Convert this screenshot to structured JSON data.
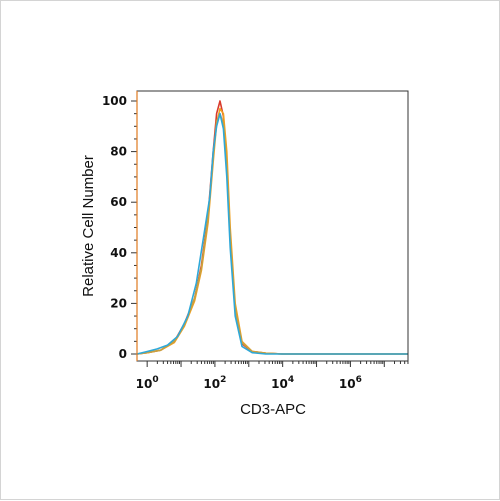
{
  "chart_data": {
    "type": "line",
    "title": "",
    "xlabel": "CD3-APC",
    "ylabel": "Relative Cell Number",
    "x_scale": "log",
    "x_range": [
      -0.3,
      7.7
    ],
    "y_range": [
      0,
      100
    ],
    "x_ticks": [
      {
        "value": 0,
        "base": "10",
        "exp": "0"
      },
      {
        "value": 2,
        "base": "10",
        "exp": "2"
      },
      {
        "value": 4,
        "base": "10",
        "exp": "4"
      },
      {
        "value": 6,
        "base": "10",
        "exp": "6"
      }
    ],
    "y_ticks": [
      "0",
      "20",
      "40",
      "60",
      "80",
      "100"
    ],
    "grid": false,
    "legend": "none",
    "series": [
      {
        "color": "#d93a2b",
        "x": [
          -0.3,
          0.0,
          0.4,
          0.8,
          1.1,
          1.4,
          1.6,
          1.8,
          1.95,
          2.05,
          2.15,
          2.25,
          2.35,
          2.45,
          2.6,
          2.8,
          3.1,
          3.5,
          4.0,
          5.0,
          6.0,
          7.7
        ],
        "y": [
          0,
          0.5,
          1.5,
          5,
          12,
          22,
          35,
          55,
          80,
          95,
          100,
          94,
          75,
          45,
          18,
          4,
          1,
          0.3,
          0,
          0,
          0,
          0
        ]
      },
      {
        "color": "#f0a020",
        "x": [
          -0.3,
          0.0,
          0.4,
          0.8,
          1.1,
          1.4,
          1.6,
          1.8,
          1.95,
          2.05,
          2.15,
          2.25,
          2.35,
          2.45,
          2.6,
          2.8,
          3.1,
          3.5,
          4.0,
          5.0,
          6.0,
          7.7
        ],
        "y": [
          0,
          0.5,
          1.5,
          4.5,
          11,
          21,
          33,
          52,
          76,
          91,
          97,
          95,
          80,
          50,
          20,
          5,
          1,
          0.3,
          0,
          0,
          0,
          0
        ]
      },
      {
        "color": "#c8a040",
        "x": [
          -0.3,
          0.0,
          0.4,
          0.8,
          1.1,
          1.4,
          1.6,
          1.8,
          1.95,
          2.05,
          2.15,
          2.25,
          2.35,
          2.45,
          2.6,
          2.8,
          3.1,
          3.5,
          4.0,
          5.0,
          6.0,
          7.7
        ],
        "y": [
          0,
          0.5,
          1.5,
          5,
          11.5,
          22,
          34,
          54,
          78,
          92,
          95,
          91,
          74,
          46,
          18,
          4.5,
          1,
          0.3,
          0,
          0,
          0,
          0
        ]
      },
      {
        "color": "#2ea8d8",
        "x": [
          -0.3,
          0.0,
          0.3,
          0.6,
          0.9,
          1.2,
          1.45,
          1.65,
          1.85,
          1.95,
          2.05,
          2.15,
          2.25,
          2.35,
          2.45,
          2.6,
          2.8,
          3.1,
          3.5,
          4.0,
          5.0,
          6.0,
          7.7
        ],
        "y": [
          0,
          1,
          2,
          3.5,
          7,
          15,
          28,
          45,
          62,
          80,
          90,
          95,
          89,
          70,
          42,
          15,
          3,
          0.5,
          0,
          0,
          0,
          0,
          0
        ]
      }
    ]
  }
}
